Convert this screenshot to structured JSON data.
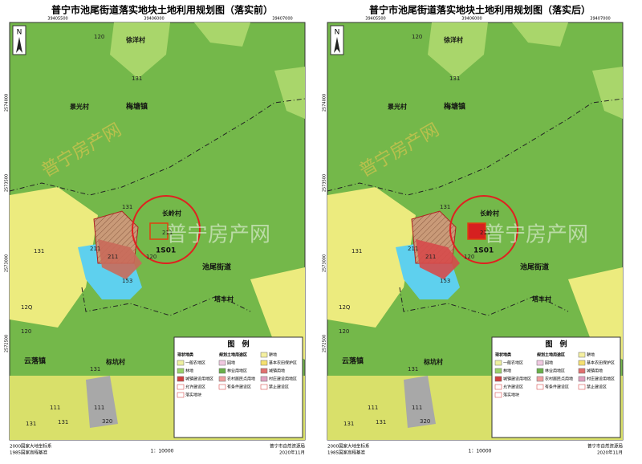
{
  "panels": [
    {
      "title": "普宁市池尾街道落实地块土地利用规划图（落实前）",
      "north": "N",
      "x_ticks": [
        "39405500",
        "39406000",
        "39407000"
      ],
      "y_ticks": [
        "2574000",
        "2573500",
        "2573000",
        "2572500"
      ],
      "places": [
        "徐洋村",
        "景光村",
        "梅塘镇",
        "长岭村",
        "池尾街道",
        "塔丰村",
        "云落镇",
        "标坑村"
      ],
      "codes": [
        "120",
        "131",
        "131",
        "131",
        "211",
        "211",
        "211",
        "120",
        "153",
        "131",
        "12Q",
        "120",
        "111",
        "111",
        "131",
        "320",
        "131"
      ],
      "parcel": "1S01",
      "legend_title": "图　例",
      "legend_items": [
        "现状地类",
        "规划土地用途区",
        "耕地",
        "一般农地区",
        "园地",
        "基本农田保护区",
        "林地",
        "林业用地区",
        "城镇用地",
        "城镇建设用地区",
        "农村居民点用地",
        "村庄建设用地区",
        "允许建设区",
        "有条件建设区",
        "禁止建设区",
        "落实地块"
      ],
      "watermark": "普宁房产网",
      "footer": {
        "datum": "2000国家大地坐标系",
        "height": "1985国家高程基准",
        "scale": "1：10000",
        "org": "普宁市自然资源局",
        "date": "2020年11月"
      }
    },
    {
      "title": "普宁市池尾街道落实地块土地利用规划图（落实后）",
      "north": "N",
      "x_ticks": [
        "39405500",
        "39406000",
        "39407000"
      ],
      "y_ticks": [
        "2574000",
        "2573500",
        "2573000",
        "2572500"
      ],
      "places": [
        "徐洋村",
        "景光村",
        "梅塘镇",
        "长岭村",
        "池尾街道",
        "塔丰村",
        "云落镇",
        "标坑村"
      ],
      "codes": [
        "120",
        "131",
        "131",
        "131",
        "211",
        "211",
        "211",
        "120",
        "153",
        "131",
        "12Q",
        "120",
        "111",
        "111",
        "131",
        "320",
        "131"
      ],
      "parcel": "1S01",
      "legend_title": "图　例",
      "legend_items": [
        "现状地类",
        "规划土地用途区",
        "耕地",
        "一般农地区",
        "园地",
        "基本农田保护区",
        "林地",
        "林业用地区",
        "城镇用地",
        "城镇建设用地区",
        "农村居民点用地",
        "村庄建设用地区",
        "允许建设区",
        "有条件建设区",
        "禁止建设区",
        "落实地块"
      ],
      "watermark": "普宁房产网",
      "footer": {
        "datum": "2000国家大地坐标系",
        "height": "1985国家高程基准",
        "scale": "1：10000",
        "org": "普宁市自然资源局",
        "date": "2020年11月"
      }
    }
  ]
}
